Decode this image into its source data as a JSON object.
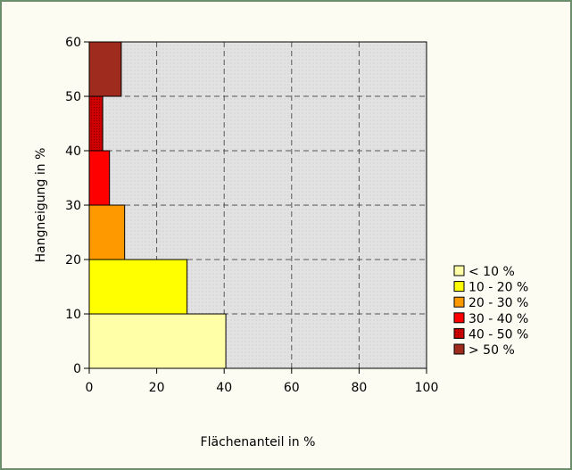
{
  "chart_data": {
    "type": "bar",
    "orientation": "horizontal",
    "title": "",
    "xlabel": "Flächenanteil in %",
    "ylabel": "Hangneigung in %",
    "xlim": [
      0,
      100
    ],
    "ylim": [
      0,
      60
    ],
    "x_ticks": [
      "0",
      "20",
      "40",
      "60",
      "80",
      "100"
    ],
    "y_ticks": [
      "0",
      "10",
      "20",
      "30",
      "40",
      "50",
      "60"
    ],
    "grid": true,
    "legend_position": "right",
    "bins": [
      {
        "label": "< 10 %",
        "from": 0,
        "to": 10,
        "value": 40.5,
        "color": "#ffffa8",
        "pattern": false
      },
      {
        "label": "10 - 20 %",
        "from": 10,
        "to": 20,
        "value": 29,
        "color": "#ffff00",
        "pattern": false
      },
      {
        "label": "20 - 30 %",
        "from": 20,
        "to": 30,
        "value": 10.5,
        "color": "#ff9900",
        "pattern": false
      },
      {
        "label": "30 - 40 %",
        "from": 30,
        "to": 40,
        "value": 6,
        "color": "#ff0000",
        "pattern": false
      },
      {
        "label": "40 - 50 %",
        "from": 40,
        "to": 50,
        "value": 4,
        "color": "#d00000",
        "pattern": true
      },
      {
        "label": "> 50 %",
        "from": 50,
        "to": 60,
        "value": 9.5,
        "color": "#9e2b1e",
        "pattern": false
      }
    ]
  }
}
